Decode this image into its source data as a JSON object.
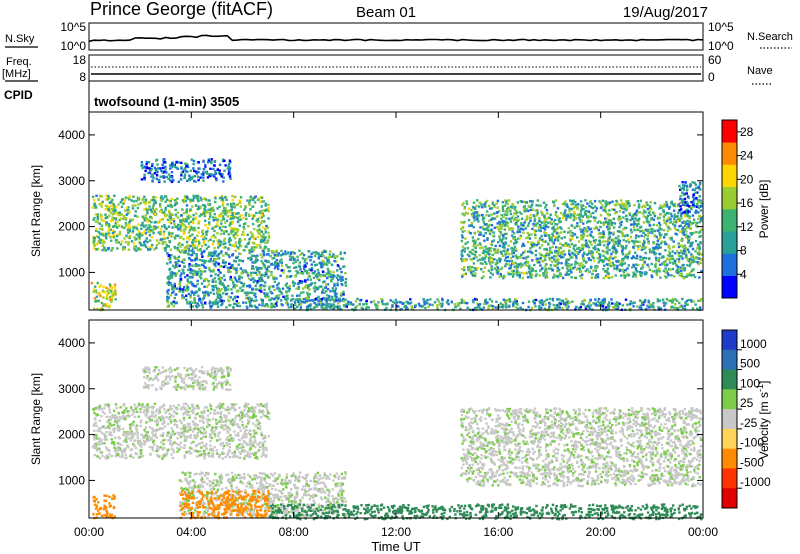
{
  "header": {
    "station": "Prince George (fitACF)",
    "beam": "Beam 01",
    "date": "19/Aug/2017"
  },
  "noise_panel": {
    "left_label": "N.Sky",
    "right_label": "N.Search",
    "y_ticks_left": [
      "10^5",
      "10^0"
    ],
    "y_ticks_right": [
      "10^5",
      "10^0"
    ]
  },
  "freq_panel": {
    "left_label_line1": "Freq.",
    "left_label_line2": "[MHz]",
    "right_label": "Nave",
    "y_ticks_left": [
      "18",
      "8"
    ],
    "y_ticks_right": [
      "60",
      "0"
    ]
  },
  "cpid": {
    "label": "CPID",
    "program": "twofsound (1-min) 3505"
  },
  "chart_data": [
    {
      "type": "heatmap",
      "title": "",
      "xlabel": "",
      "ylabel": "Slant Range [km]",
      "xlim": [
        "00:00",
        "00:00"
      ],
      "ylim": [
        180,
        4500
      ],
      "y_ticks": [
        1000,
        2000,
        3000,
        4000
      ],
      "colorbar": {
        "label": "Power [dB]",
        "ticks": [
          4,
          8,
          12,
          16,
          20,
          24,
          28
        ],
        "range": [
          0,
          30
        ],
        "colors": [
          "#0000ff",
          "#1f6fe0",
          "#2aa198",
          "#3cb371",
          "#9acd32",
          "#ffd700",
          "#ff8c00",
          "#ff0000"
        ]
      },
      "regions": [
        {
          "t0": 0.05,
          "t1": 1.0,
          "r0": 200,
          "r1": 800,
          "level": 18
        },
        {
          "t0": 0.1,
          "t1": 7.0,
          "r0": 1500,
          "r1": 2700,
          "level": 14
        },
        {
          "t0": 2.0,
          "t1": 5.5,
          "r0": 3000,
          "r1": 3500,
          "level": 6
        },
        {
          "t0": 3.0,
          "t1": 10.0,
          "r0": 250,
          "r1": 1500,
          "level": 10
        },
        {
          "t0": 8.0,
          "t1": 23.9,
          "r0": 200,
          "r1": 450,
          "level": 10
        },
        {
          "t0": 14.5,
          "t1": 23.9,
          "r0": 900,
          "r1": 2600,
          "level": 12
        },
        {
          "t0": 23.0,
          "t1": 23.9,
          "r0": 2300,
          "r1": 3000,
          "level": 6
        }
      ]
    },
    {
      "type": "heatmap",
      "title": "",
      "xlabel": "Time UT",
      "ylabel": "Slant Range [km]",
      "x_ticks": [
        "00:00",
        "04:00",
        "08:00",
        "12:00",
        "16:00",
        "20:00",
        "00:00"
      ],
      "ylim": [
        180,
        4500
      ],
      "y_ticks": [
        1000,
        2000,
        3000,
        4000
      ],
      "colorbar": {
        "label": "Velocity [m s^-1]",
        "ticks": [
          1000,
          500,
          100,
          25,
          -25,
          -100,
          -500,
          -1000
        ],
        "colors": [
          "#1e3cc8",
          "#2c6fb7",
          "#2e8b57",
          "#7ccd4b",
          "#c8c8c8",
          "#ffd45a",
          "#ff8c00",
          "#ff3300",
          "#e00000"
        ]
      },
      "regions": [
        {
          "t0": 0.1,
          "t1": 7.0,
          "r0": 1500,
          "r1": 2700,
          "level": 0
        },
        {
          "t0": 2.0,
          "t1": 5.5,
          "r0": 3000,
          "r1": 3500,
          "level": 0
        },
        {
          "t0": 3.5,
          "t1": 10.0,
          "r0": 250,
          "r1": 1200,
          "level": 0
        },
        {
          "t0": 14.5,
          "t1": 23.9,
          "r0": 900,
          "r1": 2600,
          "level": 0
        },
        {
          "t0": 0.1,
          "t1": 1.0,
          "r0": 200,
          "r1": 700,
          "level": -300
        },
        {
          "t0": 3.5,
          "t1": 7.0,
          "r0": 200,
          "r1": 800,
          "level": -200
        },
        {
          "t0": 7.0,
          "t1": 23.9,
          "r0": 180,
          "r1": 500,
          "level": 60
        }
      ]
    }
  ]
}
